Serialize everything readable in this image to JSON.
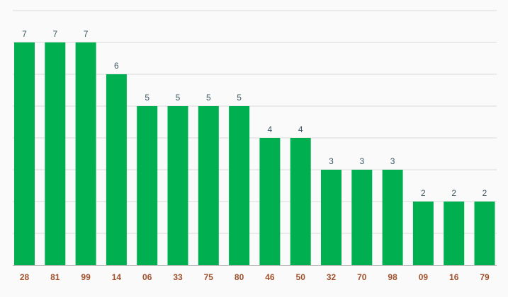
{
  "chart_data": {
    "type": "bar",
    "categories": [
      "28",
      "81",
      "99",
      "14",
      "06",
      "33",
      "75",
      "80",
      "46",
      "50",
      "32",
      "70",
      "98",
      "09",
      "16",
      "79"
    ],
    "values": [
      7,
      7,
      7,
      6,
      5,
      5,
      5,
      5,
      4,
      4,
      3,
      3,
      3,
      2,
      2,
      2
    ],
    "ylim": [
      0,
      8
    ],
    "grid": true,
    "legend": "none",
    "colors": {
      "bar": "#00b050",
      "gridline": "#d9d9d9",
      "baseline": "#bdbdbd",
      "value_label": "#3d5a66",
      "tick_label": "#a0522d"
    }
  }
}
